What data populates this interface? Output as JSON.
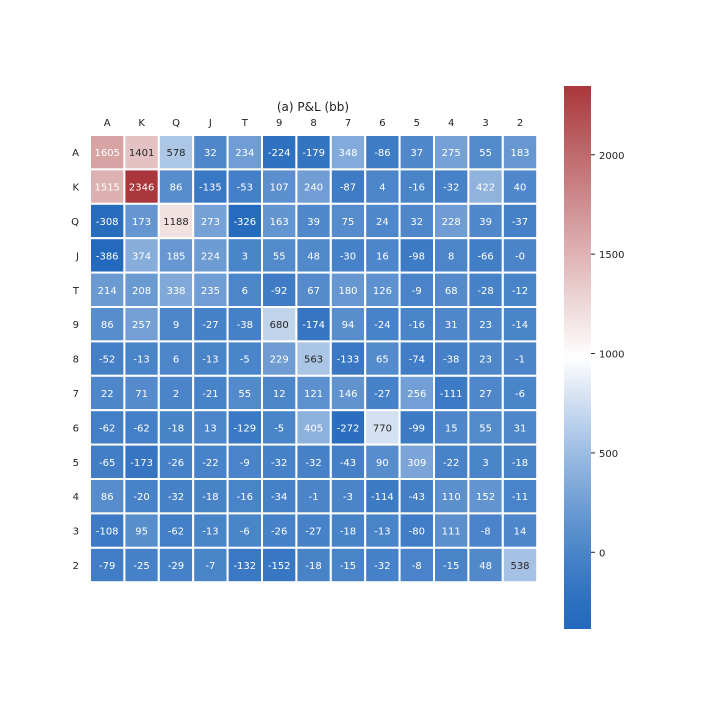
{
  "chart_data": {
    "type": "heatmap",
    "title": "(a) P&L (bb)",
    "x_labels": [
      "A",
      "K",
      "Q",
      "J",
      "T",
      "9",
      "8",
      "7",
      "6",
      "5",
      "4",
      "3",
      "2"
    ],
    "y_labels": [
      "A",
      "K",
      "Q",
      "J",
      "T",
      "9",
      "8",
      "7",
      "6",
      "5",
      "4",
      "3",
      "2"
    ],
    "values": [
      [
        1605,
        1401,
        578,
        32,
        234,
        -224,
        -179,
        348,
        -86,
        37,
        275,
        55,
        183
      ],
      [
        1515,
        2346,
        86,
        -135,
        -53,
        107,
        240,
        -87,
        4,
        -16,
        -32,
        422,
        40
      ],
      [
        -308,
        173,
        1188,
        273,
        -326,
        163,
        39,
        75,
        24,
        32,
        228,
        39,
        -37
      ],
      [
        -386,
        374,
        185,
        224,
        3,
        55,
        48,
        -30,
        16,
        -98,
        8,
        -66,
        0
      ],
      [
        214,
        208,
        338,
        235,
        6,
        -92,
        67,
        180,
        126,
        -9,
        68,
        -28,
        -12
      ],
      [
        86,
        257,
        9,
        -27,
        -38,
        680,
        -174,
        94,
        -24,
        -16,
        31,
        23,
        -14
      ],
      [
        -52,
        -13,
        6,
        -13,
        -5,
        229,
        563,
        -133,
        65,
        -74,
        -38,
        23,
        -1
      ],
      [
        22,
        71,
        2,
        -21,
        55,
        12,
        121,
        146,
        -27,
        256,
        -111,
        27,
        -6
      ],
      [
        -62,
        -62,
        -18,
        13,
        -129,
        -5,
        405,
        -272,
        770,
        -99,
        15,
        55,
        31
      ],
      [
        -65,
        -173,
        -26,
        -22,
        -9,
        -32,
        -32,
        -43,
        90,
        309,
        -22,
        3,
        -18
      ],
      [
        86,
        -20,
        -32,
        -18,
        -16,
        -34,
        -1,
        -3,
        -114,
        -43,
        110,
        152,
        -11
      ],
      [
        -108,
        95,
        -62,
        -13,
        -6,
        -26,
        -27,
        -18,
        -13,
        -80,
        111,
        -8,
        14
      ],
      [
        -79,
        -25,
        -29,
        -7,
        -132,
        -152,
        -18,
        -15,
        -32,
        -8,
        -15,
        48,
        538
      ]
    ],
    "value_labels": [
      [
        "1605",
        "1401",
        "578",
        "32",
        "234",
        "-224",
        "-179",
        "348",
        "-86",
        "37",
        "275",
        "55",
        "183"
      ],
      [
        "1515",
        "2346",
        "86",
        "-135",
        "-53",
        "107",
        "240",
        "-87",
        "4",
        "-16",
        "-32",
        "422",
        "40"
      ],
      [
        "-308",
        "173",
        "1188",
        "273",
        "-326",
        "163",
        "39",
        "75",
        "24",
        "32",
        "228",
        "39",
        "-37"
      ],
      [
        "-386",
        "374",
        "185",
        "224",
        "3",
        "55",
        "48",
        "-30",
        "16",
        "-98",
        "8",
        "-66",
        "-0"
      ],
      [
        "214",
        "208",
        "338",
        "235",
        "6",
        "-92",
        "67",
        "180",
        "126",
        "-9",
        "68",
        "-28",
        "-12"
      ],
      [
        "86",
        "257",
        "9",
        "-27",
        "-38",
        "680",
        "-174",
        "94",
        "-24",
        "-16",
        "31",
        "23",
        "-14"
      ],
      [
        "-52",
        "-13",
        "6",
        "-13",
        "-5",
        "229",
        "563",
        "-133",
        "65",
        "-74",
        "-38",
        "23",
        "-1"
      ],
      [
        "22",
        "71",
        "2",
        "-21",
        "55",
        "12",
        "121",
        "146",
        "-27",
        "256",
        "-111",
        "27",
        "-6"
      ],
      [
        "-62",
        "-62",
        "-18",
        "13",
        "-129",
        "-5",
        "405",
        "-272",
        "770",
        "-99",
        "15",
        "55",
        "31"
      ],
      [
        "-65",
        "-173",
        "-26",
        "-22",
        "-9",
        "-32",
        "-32",
        "-43",
        "90",
        "309",
        "-22",
        "3",
        "-18"
      ],
      [
        "86",
        "-20",
        "-32",
        "-18",
        "-16",
        "-34",
        "-1",
        "-3",
        "-114",
        "-43",
        "110",
        "152",
        "-11"
      ],
      [
        "-108",
        "95",
        "-62",
        "-13",
        "-6",
        "-26",
        "-27",
        "-18",
        "-13",
        "-80",
        "111",
        "-8",
        "14"
      ],
      [
        "-79",
        "-25",
        "-29",
        "-7",
        "-132",
        "-152",
        "-18",
        "-15",
        "-32",
        "-8",
        "-15",
        "48",
        "538"
      ]
    ],
    "color_range": [
      -386,
      2346
    ],
    "colormap": "vlag",
    "colormap_colors": [
      "#2369bd",
      "#ffffff",
      "#a9373b"
    ],
    "colorbar": {
      "ticks": [
        0,
        500,
        1000,
        1500,
        2000
      ],
      "tick_labels": [
        "0",
        "500",
        "1000",
        "1500",
        "2000"
      ]
    },
    "cell_separator_color": "#ffffff"
  }
}
